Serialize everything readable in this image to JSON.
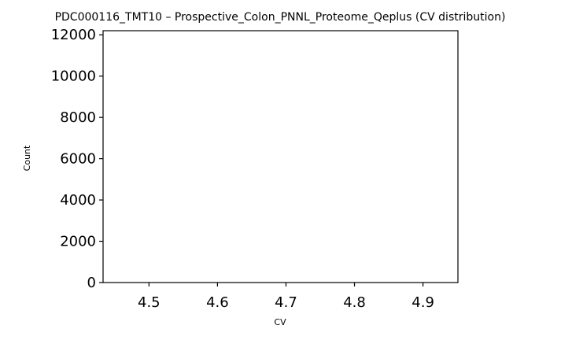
{
  "chart_data": {
    "type": "bar",
    "title": "PDC000116_TMT10 – Prospective_Colon_PNNL_Proteome_Qeplus (CV distribution)",
    "xlabel": "CV",
    "ylabel": "Count",
    "xlim": [
      4.433,
      4.951
    ],
    "ylim": [
      0,
      12200
    ],
    "xticks": [
      4.5,
      4.6,
      4.7,
      4.8,
      4.9
    ],
    "xtick_labels": [
      "4.5",
      "4.6",
      "4.7",
      "4.8",
      "4.9"
    ],
    "yticks": [
      0,
      2000,
      4000,
      6000,
      8000,
      10000,
      12000
    ],
    "ytick_labels": [
      "0",
      "2000",
      "4000",
      "6000",
      "8000",
      "10000",
      "12000"
    ],
    "series": [],
    "grid": false,
    "legend": "none"
  }
}
